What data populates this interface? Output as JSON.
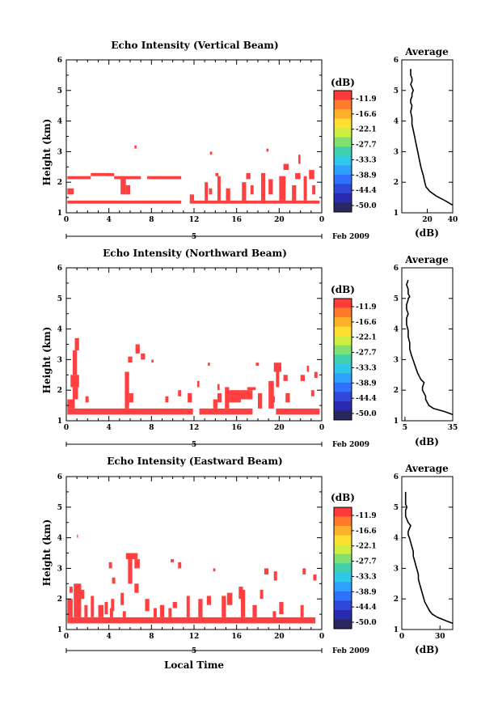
{
  "figure": {
    "x_axis_label": "Local Time",
    "date_label": "Feb 2009",
    "day_label": "5",
    "colorbar_unit": "(dB)",
    "colorbar_ticks": [
      "-11.9",
      "-16.6",
      "-22.1",
      "-27.7",
      "-33.3",
      "-38.9",
      "-44.4",
      "-50.0"
    ],
    "colorbar_colors": [
      "#ff3a3a",
      "#ff7a2a",
      "#ffb02a",
      "#ffe030",
      "#d0ee40",
      "#80e070",
      "#40d0b0",
      "#30c8e8",
      "#30a0ff",
      "#3070ff",
      "#3048d8",
      "#2a2ab0",
      "#28285e"
    ],
    "data_color": "#ff4040",
    "average_title": "Average",
    "average_xlabel": "(dB)"
  },
  "chart_data": [
    {
      "type": "heatmap",
      "title": "Echo Intensity (Vertical Beam)",
      "xlabel": "",
      "ylabel": "Height (km)",
      "xlim": [
        0,
        24
      ],
      "ylim": [
        1,
        6
      ],
      "xticks": [
        "0",
        "4",
        "8",
        "12",
        "16",
        "20",
        "0"
      ],
      "yticks": [
        "1",
        "2",
        "3",
        "4",
        "5",
        "6"
      ],
      "segments": [
        [
          0.1,
          1.3,
          10.8,
          1.4
        ],
        [
          0.1,
          2.1,
          2.3,
          2.2
        ],
        [
          2.3,
          2.2,
          4.5,
          2.3
        ],
        [
          4.5,
          2.1,
          7.0,
          2.2
        ],
        [
          0.1,
          1.6,
          0.7,
          1.8
        ],
        [
          5.1,
          1.6,
          5.6,
          2.1
        ],
        [
          5.6,
          1.6,
          6.0,
          1.9
        ],
        [
          7.6,
          2.1,
          10.8,
          2.2
        ],
        [
          6.4,
          3.1,
          6.6,
          3.2
        ],
        [
          11.6,
          1.3,
          23.8,
          1.4
        ],
        [
          11.6,
          1.4,
          12.0,
          1.6
        ],
        [
          13.0,
          1.4,
          13.3,
          2.0
        ],
        [
          13.4,
          1.6,
          13.7,
          1.8
        ],
        [
          14.2,
          1.4,
          14.5,
          2.2
        ],
        [
          14.0,
          2.2,
          14.3,
          2.3
        ],
        [
          15.0,
          1.4,
          15.4,
          1.8
        ],
        [
          16.5,
          1.4,
          16.9,
          2.0
        ],
        [
          17.3,
          1.6,
          17.6,
          1.9
        ],
        [
          18.3,
          1.4,
          18.7,
          2.3
        ],
        [
          19.0,
          1.6,
          19.4,
          2.1
        ],
        [
          20.0,
          1.4,
          20.6,
          2.2
        ],
        [
          20.4,
          2.4,
          20.9,
          2.6
        ],
        [
          21.2,
          1.4,
          21.6,
          1.9
        ],
        [
          21.5,
          2.1,
          22.0,
          2.3
        ],
        [
          22.3,
          1.4,
          22.6,
          2.2
        ],
        [
          22.8,
          2.1,
          23.3,
          2.4
        ],
        [
          23.1,
          1.6,
          23.4,
          1.9
        ],
        [
          21.8,
          2.6,
          22.0,
          2.9
        ],
        [
          18.8,
          3.0,
          19.0,
          3.1
        ],
        [
          13.5,
          2.9,
          13.7,
          3.0
        ],
        [
          16.9,
          2.1,
          17.3,
          2.3
        ]
      ]
    },
    {
      "type": "heatmap",
      "title": "Echo Intensity (Northward Beam)",
      "xlabel": "",
      "ylabel": "Height (km)",
      "xlim": [
        0,
        24
      ],
      "ylim": [
        1,
        6
      ],
      "xticks": [
        "0",
        "4",
        "8",
        "12",
        "16",
        "20",
        "0"
      ],
      "yticks": [
        "1",
        "2",
        "3",
        "4",
        "5",
        "6"
      ],
      "segments": [
        [
          0.1,
          1.2,
          11.9,
          1.4
        ],
        [
          12.5,
          1.2,
          17.5,
          1.4
        ],
        [
          19.7,
          1.2,
          23.8,
          1.4
        ],
        [
          0.1,
          1.4,
          0.8,
          1.7
        ],
        [
          0.6,
          1.7,
          1.1,
          2.1
        ],
        [
          0.4,
          2.1,
          1.2,
          2.5
        ],
        [
          0.6,
          2.5,
          1.0,
          3.3
        ],
        [
          0.8,
          3.3,
          1.2,
          3.7
        ],
        [
          1.8,
          1.6,
          2.1,
          1.8
        ],
        [
          5.5,
          1.4,
          5.9,
          2.6
        ],
        [
          5.9,
          1.6,
          6.3,
          1.9
        ],
        [
          5.8,
          2.9,
          6.2,
          3.1
        ],
        [
          6.5,
          3.2,
          6.9,
          3.5
        ],
        [
          7.0,
          3.0,
          7.4,
          3.2
        ],
        [
          9.3,
          1.6,
          9.6,
          1.8
        ],
        [
          10.5,
          1.8,
          10.8,
          2.0
        ],
        [
          11.4,
          1.6,
          11.8,
          1.9
        ],
        [
          12.3,
          2.1,
          12.5,
          2.3
        ],
        [
          13.8,
          1.4,
          14.2,
          1.7
        ],
        [
          14.2,
          1.6,
          14.6,
          1.9
        ],
        [
          14.2,
          2.0,
          14.4,
          2.2
        ],
        [
          14.9,
          1.4,
          15.3,
          2.1
        ],
        [
          15.3,
          1.6,
          16.4,
          2.0
        ],
        [
          16.4,
          1.7,
          17.5,
          2.0
        ],
        [
          17.0,
          2.0,
          17.8,
          2.1
        ],
        [
          18.0,
          1.4,
          18.4,
          1.9
        ],
        [
          19.0,
          1.4,
          19.5,
          2.3
        ],
        [
          19.7,
          2.1,
          20.0,
          2.6
        ],
        [
          19.5,
          2.6,
          20.2,
          2.9
        ],
        [
          20.4,
          2.3,
          20.8,
          2.5
        ],
        [
          20.6,
          1.6,
          21.0,
          1.9
        ],
        [
          22.0,
          2.3,
          22.4,
          2.5
        ],
        [
          23.0,
          1.8,
          23.3,
          2.0
        ],
        [
          23.3,
          2.4,
          23.6,
          2.6
        ],
        [
          22.6,
          2.6,
          22.8,
          2.8
        ],
        [
          17.8,
          2.8,
          18.1,
          2.9
        ],
        [
          13.3,
          2.8,
          13.5,
          2.9
        ],
        [
          8.0,
          2.9,
          8.2,
          3.0
        ],
        [
          19.2,
          1.6,
          19.6,
          1.8
        ]
      ]
    },
    {
      "type": "heatmap",
      "title": "Echo Intensity (Eastward Beam)",
      "xlabel": "Local Time",
      "ylabel": "Height (km)",
      "xlim": [
        0,
        24
      ],
      "ylim": [
        1,
        6
      ],
      "xticks": [
        "0",
        "4",
        "8",
        "12",
        "16",
        "20",
        "0"
      ],
      "yticks": [
        "1",
        "2",
        "3",
        "4",
        "5",
        "6"
      ],
      "segments": [
        [
          0.1,
          1.2,
          23.4,
          1.4
        ],
        [
          0.1,
          1.4,
          0.6,
          2.0
        ],
        [
          0.7,
          1.4,
          1.4,
          2.5
        ],
        [
          0.8,
          2.0,
          1.7,
          2.3
        ],
        [
          0.3,
          2.2,
          0.6,
          2.4
        ],
        [
          1.7,
          1.4,
          2.0,
          1.8
        ],
        [
          2.3,
          1.4,
          2.6,
          2.1
        ],
        [
          3.0,
          1.4,
          3.5,
          1.8
        ],
        [
          3.6,
          1.5,
          3.9,
          1.9
        ],
        [
          4.1,
          1.4,
          4.4,
          1.7
        ],
        [
          4.3,
          2.5,
          4.6,
          2.7
        ],
        [
          4.0,
          3.0,
          4.3,
          3.2
        ],
        [
          4.2,
          1.6,
          4.5,
          2.0
        ],
        [
          5.3,
          1.4,
          5.6,
          1.6
        ],
        [
          5.1,
          1.8,
          5.4,
          2.2
        ],
        [
          5.8,
          2.5,
          6.2,
          3.3
        ],
        [
          5.6,
          3.3,
          6.7,
          3.5
        ],
        [
          6.4,
          3.0,
          6.9,
          3.3
        ],
        [
          6.4,
          2.2,
          6.8,
          2.5
        ],
        [
          7.4,
          1.6,
          7.8,
          2.0
        ],
        [
          8.2,
          1.4,
          8.5,
          1.7
        ],
        [
          8.8,
          1.4,
          9.2,
          1.8
        ],
        [
          9.6,
          1.4,
          9.9,
          1.7
        ],
        [
          9.8,
          3.2,
          10.1,
          3.3
        ],
        [
          10.0,
          1.7,
          10.4,
          1.9
        ],
        [
          11.3,
          1.4,
          11.6,
          2.1
        ],
        [
          12.4,
          1.4,
          12.8,
          2.0
        ],
        [
          13.2,
          1.8,
          13.6,
          2.1
        ],
        [
          13.8,
          2.9,
          14.0,
          3.0
        ],
        [
          14.6,
          1.4,
          15.0,
          2.1
        ],
        [
          15.1,
          1.8,
          15.6,
          2.2
        ],
        [
          16.4,
          1.4,
          16.8,
          2.3
        ],
        [
          17.5,
          1.4,
          17.9,
          1.8
        ],
        [
          18.2,
          2.0,
          18.5,
          2.3
        ],
        [
          18.6,
          2.8,
          19.0,
          3.0
        ],
        [
          19.5,
          2.6,
          19.8,
          2.9
        ],
        [
          20.0,
          1.5,
          20.4,
          1.9
        ],
        [
          22.0,
          1.4,
          22.3,
          1.8
        ],
        [
          22.2,
          2.8,
          22.5,
          3.0
        ],
        [
          23.2,
          2.6,
          23.5,
          2.8
        ],
        [
          16.2,
          2.0,
          16.6,
          2.4
        ],
        [
          1.0,
          4.0,
          1.1,
          4.1
        ],
        [
          10.5,
          3.0,
          10.8,
          3.2
        ],
        [
          19.4,
          1.4,
          19.7,
          1.6
        ]
      ]
    },
    {
      "type": "line",
      "title": "Average",
      "xlabel": "(dB)",
      "ylabel": "",
      "xlim": [
        0,
        40
      ],
      "ylim": [
        1,
        6
      ],
      "xticks": [
        "20",
        "40"
      ],
      "xtick_values": [
        20,
        40
      ],
      "yticks": [
        "1",
        "2",
        "3",
        "4",
        "5",
        "6"
      ],
      "x": [
        40,
        34,
        27,
        22,
        19,
        18,
        17,
        15,
        14,
        13,
        12,
        11,
        10,
        9,
        8,
        8,
        7,
        8,
        7,
        7,
        8,
        8,
        9,
        8,
        7,
        8,
        8,
        7,
        7,
        7
      ],
      "y": [
        1.25,
        1.4,
        1.55,
        1.7,
        1.85,
        2.0,
        2.2,
        2.5,
        2.7,
        2.9,
        3.1,
        3.3,
        3.5,
        3.7,
        3.9,
        4.1,
        4.3,
        4.5,
        4.6,
        4.7,
        4.8,
        4.9,
        5.0,
        5.1,
        5.2,
        5.3,
        5.4,
        5.5,
        5.6,
        5.7
      ]
    },
    {
      "type": "line",
      "title": "Average",
      "xlabel": "(dB)",
      "ylabel": "",
      "xlim": [
        3,
        35
      ],
      "ylim": [
        1,
        6
      ],
      "xticks": [
        "5",
        "35"
      ],
      "xtick_values": [
        5,
        35
      ],
      "yticks": [
        "1",
        "2",
        "3",
        "4",
        "5",
        "6"
      ],
      "x": [
        35,
        30,
        23,
        20,
        19,
        18,
        18,
        17,
        16,
        16,
        17,
        15,
        14,
        13,
        12,
        11,
        10,
        9,
        8,
        8,
        7,
        7,
        6,
        6,
        7,
        6,
        6,
        7,
        7,
        8,
        7,
        7,
        6,
        7
      ],
      "y": [
        1.2,
        1.3,
        1.4,
        1.5,
        1.6,
        1.7,
        1.8,
        1.9,
        2.0,
        2.1,
        2.25,
        2.35,
        2.45,
        2.55,
        2.7,
        2.85,
        3.0,
        3.15,
        3.35,
        3.55,
        3.75,
        3.95,
        4.15,
        4.35,
        4.5,
        4.65,
        4.8,
        4.95,
        5.0,
        5.05,
        5.15,
        5.3,
        5.45,
        5.6
      ]
    },
    {
      "type": "line",
      "title": "Average",
      "xlabel": "(dB)",
      "ylabel": "",
      "xlim": [
        0,
        40
      ],
      "ylim": [
        1,
        6
      ],
      "xticks": [
        "0",
        "30"
      ],
      "xtick_values": [
        0,
        30
      ],
      "yticks": [
        "1",
        "2",
        "3",
        "4",
        "5",
        "6"
      ],
      "x": [
        40,
        34,
        28,
        24,
        22,
        20,
        18,
        17,
        16,
        15,
        14,
        13,
        13,
        12,
        11,
        10,
        9,
        9,
        8,
        7,
        6,
        5,
        5,
        6,
        7,
        5,
        4,
        3,
        3,
        3,
        4,
        3,
        3,
        3,
        3
      ],
      "y": [
        1.2,
        1.3,
        1.4,
        1.5,
        1.6,
        1.75,
        1.9,
        2.05,
        2.2,
        2.35,
        2.5,
        2.65,
        2.8,
        2.95,
        3.1,
        3.25,
        3.4,
        3.55,
        3.7,
        3.85,
        4.0,
        4.1,
        4.2,
        4.3,
        4.4,
        4.5,
        4.6,
        4.7,
        4.8,
        4.9,
        5.0,
        5.1,
        5.2,
        5.35,
        5.5
      ]
    }
  ]
}
